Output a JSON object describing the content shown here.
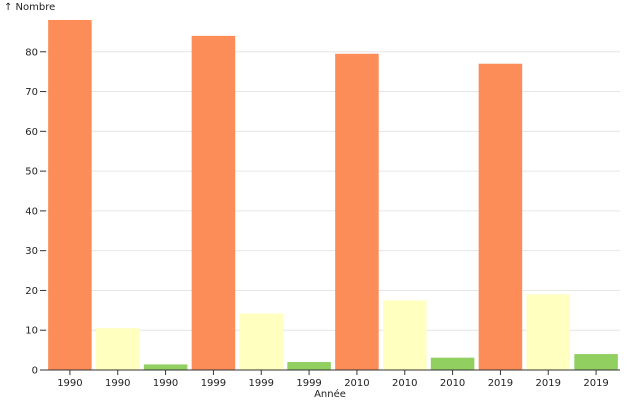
{
  "chart_data": {
    "type": "bar",
    "categories": [
      "1990",
      "1990",
      "1990",
      "1999",
      "1999",
      "1999",
      "2010",
      "2010",
      "2010",
      "2019",
      "2019",
      "2019"
    ],
    "values": [
      88,
      10.5,
      1.4,
      84,
      14.2,
      2,
      79.5,
      17.5,
      3.1,
      77,
      19,
      4
    ],
    "bar_colors": [
      "#fc8d59",
      "#ffffbf",
      "#91cf60",
      "#fc8d59",
      "#ffffbf",
      "#91cf60",
      "#fc8d59",
      "#ffffbf",
      "#91cf60",
      "#fc8d59",
      "#ffffbf",
      "#91cf60"
    ],
    "xlabel": "Année",
    "ylabel": "↑ Nombre",
    "ylim": [
      0,
      90
    ],
    "yticks": [
      0,
      10,
      20,
      30,
      40,
      50,
      60,
      70,
      80
    ],
    "grid": true
  }
}
